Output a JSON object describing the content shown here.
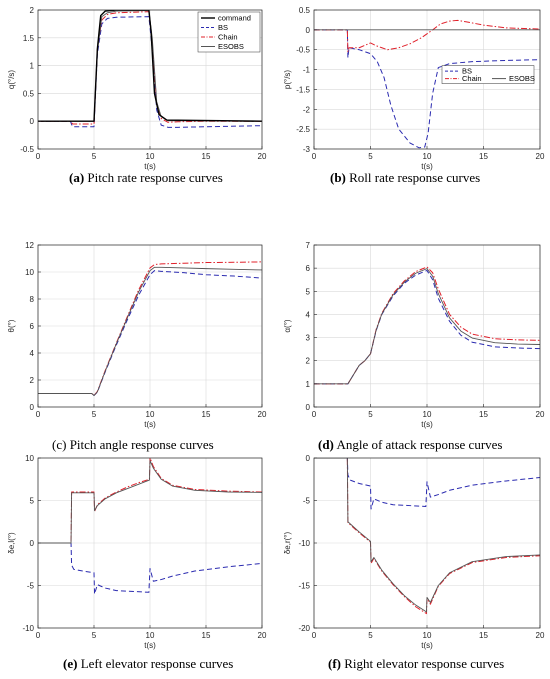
{
  "colors": {
    "command": "#000000",
    "BS": "#2b2bb0",
    "Chain": "#e0202a",
    "ESOBS": "#555555",
    "grid": "#d9d9d9",
    "axis": "#262626"
  },
  "captions": [
    {
      "letter": "(a)",
      "text": "Pitch rate response curves"
    },
    {
      "letter": "(b)",
      "text": "Roll rate response curves"
    },
    {
      "letter": "(c)",
      "text": "Pitch angle response curves"
    },
    {
      "letter": "(d)",
      "text": "Angle of attack response curves"
    },
    {
      "letter": "(e)",
      "text": "Left elevator response curves"
    },
    {
      "letter": "(f)",
      "text": "Right elevator response curves"
    }
  ],
  "chart_data": [
    {
      "type": "line",
      "xlabel": "t(s)",
      "ylabel": "q(°/s)",
      "xlim": [
        0,
        20
      ],
      "ylim": [
        -0.5,
        2
      ],
      "xticks": [
        0,
        5,
        10,
        15,
        20
      ],
      "yticks": [
        -0.5,
        0,
        0.5,
        1,
        1.5,
        2
      ],
      "xtick_labels": [
        "0",
        "5",
        "10",
        "15",
        "20"
      ],
      "ytick_labels": [
        "-0.5",
        "0",
        "0.5",
        "1",
        "1.5",
        "2"
      ],
      "grid": true,
      "legend": "top-right",
      "legend_entries": [
        "command",
        "BS",
        "Chain",
        "ESOBS"
      ],
      "series": [
        {
          "name": "command",
          "style": "solid",
          "x": [
            0,
            5,
            5.3,
            5.6,
            6,
            7,
            9.9,
            10.1,
            10.4,
            10.8,
            11.5,
            20
          ],
          "y": [
            0,
            0,
            1.3,
            1.9,
            1.98,
            2,
            2,
            1.6,
            0.5,
            0.12,
            0.02,
            0
          ]
        },
        {
          "name": "BS",
          "style": "dashed",
          "x": [
            0,
            2.9,
            3,
            3.1,
            5,
            5.3,
            5.7,
            6.2,
            7,
            9.9,
            10.2,
            10.6,
            11,
            11.6,
            12.5,
            15,
            20
          ],
          "y": [
            0,
            0,
            -0.06,
            -0.1,
            -0.1,
            1.2,
            1.75,
            1.85,
            1.87,
            1.88,
            1.3,
            0.2,
            -0.07,
            -0.11,
            -0.11,
            -0.1,
            -0.08
          ]
        },
        {
          "name": "Chain",
          "style": "dashdot",
          "x": [
            0,
            2.9,
            3,
            3.1,
            5,
            5.3,
            5.7,
            6.2,
            7,
            9.9,
            10.2,
            10.6,
            11,
            11.6,
            12.5,
            15,
            20
          ],
          "y": [
            0,
            0,
            -0.03,
            -0.05,
            -0.05,
            1.3,
            1.82,
            1.92,
            1.95,
            1.97,
            1.4,
            0.3,
            0.05,
            -0.02,
            -0.01,
            0,
            0
          ]
        },
        {
          "name": "ESOBS",
          "style": "solid",
          "x": [
            0,
            5,
            5.3,
            5.7,
            6.2,
            7,
            9.9,
            10.2,
            10.6,
            11,
            11.6,
            20
          ],
          "y": [
            0,
            0,
            1.25,
            1.88,
            1.95,
            1.98,
            1.99,
            1.5,
            0.35,
            0.08,
            0.01,
            0
          ]
        }
      ]
    },
    {
      "type": "line",
      "xlabel": "t(s)",
      "ylabel": "p(°/s)",
      "xlim": [
        0,
        20
      ],
      "ylim": [
        -3,
        0.5
      ],
      "xticks": [
        0,
        5,
        10,
        15,
        20
      ],
      "yticks": [
        -3,
        -2.5,
        -2,
        -1.5,
        -1,
        -0.5,
        0,
        0.5
      ],
      "xtick_labels": [
        "0",
        "5",
        "10",
        "15",
        "20"
      ],
      "ytick_labels": [
        "-3",
        "-2.5",
        "-2",
        "-1.5",
        "-1",
        "-0.5",
        "0",
        "0.5"
      ],
      "grid": true,
      "legend": "center-right",
      "legend_entries": [
        "BS",
        "Chain",
        "ESOBS"
      ],
      "series": [
        {
          "name": "BS",
          "style": "dashed",
          "x": [
            0,
            2.95,
            3,
            3.1,
            4,
            5,
            5.6,
            6.2,
            6.8,
            7.5,
            8.5,
            9.3,
            9.8,
            10.1,
            10.5,
            11,
            12,
            14,
            17,
            20
          ],
          "y": [
            0,
            0,
            -0.7,
            -0.45,
            -0.5,
            -0.6,
            -0.8,
            -1.2,
            -1.9,
            -2.5,
            -2.85,
            -2.97,
            -2.95,
            -2.6,
            -1.6,
            -0.95,
            -0.85,
            -0.8,
            -0.77,
            -0.75
          ]
        },
        {
          "name": "Chain",
          "style": "dashdot",
          "x": [
            0,
            2.95,
            3,
            3.1,
            4,
            5,
            5.5,
            6.5,
            7.5,
            8.5,
            9.5,
            10.5,
            11.2,
            12,
            12.7,
            13.5,
            15,
            17,
            20
          ],
          "y": [
            0,
            0,
            -0.55,
            -0.45,
            -0.45,
            -0.33,
            -0.4,
            -0.5,
            -0.45,
            -0.35,
            -0.2,
            0,
            0.15,
            0.22,
            0.24,
            0.2,
            0.12,
            0.05,
            0.02
          ]
        },
        {
          "name": "ESOBS",
          "style": "solid",
          "x": [
            0,
            20
          ],
          "y": [
            0,
            0
          ]
        }
      ]
    },
    {
      "type": "line",
      "xlabel": "t(s)",
      "ylabel": "θ(°)",
      "xlim": [
        0,
        20
      ],
      "ylim": [
        0,
        12
      ],
      "xticks": [
        0,
        5,
        10,
        15,
        20
      ],
      "yticks": [
        0,
        2,
        4,
        6,
        8,
        10,
        12
      ],
      "xtick_labels": [
        "0",
        "5",
        "10",
        "15",
        "20"
      ],
      "ytick_labels": [
        "0",
        "2",
        "4",
        "6",
        "8",
        "10",
        "12"
      ],
      "grid": true,
      "series": [
        {
          "name": "BS",
          "style": "dashed",
          "x": [
            0,
            4.8,
            5,
            5.3,
            6,
            7,
            8,
            9,
            10,
            10.4,
            11,
            13,
            15,
            17.5,
            20
          ],
          "y": [
            1,
            1,
            0.85,
            1.1,
            2.6,
            4.6,
            6.5,
            8.3,
            9.8,
            10.1,
            10.05,
            9.95,
            9.8,
            9.7,
            9.55
          ]
        },
        {
          "name": "Chain",
          "style": "dashdot",
          "x": [
            0,
            4.8,
            5,
            5.3,
            6,
            7,
            8,
            9,
            10,
            10.4,
            11,
            13,
            15,
            17.5,
            20
          ],
          "y": [
            1,
            1,
            0.85,
            1.15,
            2.7,
            4.75,
            6.75,
            8.7,
            10.3,
            10.55,
            10.6,
            10.65,
            10.7,
            10.72,
            10.75
          ]
        },
        {
          "name": "ESOBS",
          "style": "solid",
          "x": [
            0,
            4.8,
            5,
            5.3,
            6,
            7,
            8,
            9,
            10,
            10.4,
            11,
            13,
            15,
            17.5,
            20
          ],
          "y": [
            1,
            1,
            0.85,
            1.12,
            2.65,
            4.7,
            6.65,
            8.55,
            10.1,
            10.35,
            10.35,
            10.3,
            10.25,
            10.2,
            10.15
          ]
        }
      ]
    },
    {
      "type": "line",
      "xlabel": "t(s)",
      "ylabel": "α(°)",
      "xlim": [
        0,
        20
      ],
      "ylim": [
        0,
        7
      ],
      "xticks": [
        0,
        5,
        10,
        15,
        20
      ],
      "yticks": [
        0,
        1,
        2,
        3,
        4,
        5,
        6,
        7
      ],
      "xtick_labels": [
        "0",
        "5",
        "10",
        "15",
        "20"
      ],
      "ytick_labels": [
        "0",
        "1",
        "2",
        "3",
        "4",
        "5",
        "6",
        "7"
      ],
      "grid": true,
      "series": [
        {
          "name": "BS",
          "style": "dashed",
          "x": [
            0,
            3,
            3.5,
            4,
            4.5,
            5,
            5.5,
            6,
            7,
            8,
            9,
            10,
            10.5,
            11,
            12,
            13,
            14,
            16,
            18,
            20
          ],
          "y": [
            1,
            1,
            1.4,
            1.8,
            2,
            2.3,
            3.3,
            4,
            4.8,
            5.35,
            5.7,
            5.9,
            5.5,
            4.7,
            3.7,
            3.1,
            2.8,
            2.6,
            2.55,
            2.52
          ]
        },
        {
          "name": "Chain",
          "style": "dashdot",
          "x": [
            0,
            3,
            3.5,
            4,
            4.5,
            5,
            5.5,
            6,
            7,
            8,
            9,
            10,
            10.5,
            11,
            12,
            13,
            14,
            16,
            18,
            20
          ],
          "y": [
            1,
            1,
            1.4,
            1.8,
            2,
            2.3,
            3.35,
            4.05,
            4.9,
            5.45,
            5.85,
            6.05,
            5.8,
            5.1,
            4,
            3.45,
            3.15,
            2.95,
            2.9,
            2.88
          ]
        },
        {
          "name": "ESOBS",
          "style": "solid",
          "x": [
            0,
            3,
            3.5,
            4,
            4.5,
            5,
            5.5,
            6,
            7,
            8,
            9,
            10,
            10.5,
            11,
            12,
            13,
            14,
            16,
            18,
            20
          ],
          "y": [
            1,
            1,
            1.4,
            1.8,
            2,
            2.3,
            3.32,
            4.02,
            4.85,
            5.4,
            5.78,
            5.98,
            5.65,
            4.9,
            3.85,
            3.28,
            2.98,
            2.78,
            2.72,
            2.7
          ]
        }
      ]
    },
    {
      "type": "line",
      "xlabel": "t(s)",
      "ylabel": "δe,l(°)",
      "xlim": [
        0,
        20
      ],
      "ylim": [
        -10,
        10
      ],
      "xticks": [
        0,
        5,
        10,
        15,
        20
      ],
      "yticks": [
        -10,
        -5,
        0,
        5,
        10
      ],
      "xtick_labels": [
        "0",
        "5",
        "10",
        "15",
        "20"
      ],
      "ytick_labels": [
        "-10",
        "-5",
        "0",
        "5",
        "10"
      ],
      "grid": true,
      "series": [
        {
          "name": "BS",
          "style": "dashed",
          "x": [
            0,
            2.95,
            3,
            3.2,
            4,
            5,
            5.05,
            5.3,
            6,
            7,
            9.9,
            10,
            10.3,
            11,
            12,
            14,
            17,
            20
          ],
          "y": [
            0,
            0,
            -2.6,
            -3.1,
            -3.3,
            -3.5,
            -6,
            -4.9,
            -5.3,
            -5.6,
            -5.8,
            -3,
            -4.5,
            -4.3,
            -3.9,
            -3.3,
            -2.8,
            -2.4
          ]
        },
        {
          "name": "Chain",
          "style": "dashdot",
          "x": [
            0,
            2.95,
            3,
            4,
            5,
            5.05,
            5.3,
            6,
            7,
            8,
            9,
            9.95,
            10,
            10.3,
            11,
            12,
            14,
            17,
            20
          ],
          "y": [
            0,
            0,
            6,
            6,
            6,
            3.7,
            4.5,
            5.3,
            6,
            6.6,
            7.1,
            7.5,
            10,
            9,
            7.6,
            6.8,
            6.3,
            6.1,
            6
          ]
        },
        {
          "name": "ESOBS",
          "style": "solid",
          "x": [
            0,
            2.95,
            3,
            4,
            5,
            5.05,
            5.3,
            6,
            7,
            9.95,
            10,
            10.3,
            11,
            12,
            14,
            17,
            20
          ],
          "y": [
            0,
            0,
            5.9,
            5.9,
            5.9,
            3.8,
            4.4,
            5.2,
            5.9,
            7.4,
            9.7,
            8.8,
            7.5,
            6.7,
            6.2,
            6,
            5.95
          ]
        }
      ]
    },
    {
      "type": "line",
      "xlabel": "t(s)",
      "ylabel": "δe,r(°)",
      "xlim": [
        0,
        20
      ],
      "ylim": [
        -20,
        0
      ],
      "xticks": [
        0,
        5,
        10,
        15,
        20
      ],
      "yticks": [
        -20,
        -15,
        -10,
        -5,
        0
      ],
      "xtick_labels": [
        "0",
        "5",
        "10",
        "15",
        "20"
      ],
      "ytick_labels": [
        "-20",
        "-15",
        "-10",
        "-5",
        "0"
      ],
      "grid": true,
      "series": [
        {
          "name": "BS",
          "style": "dashed",
          "x": [
            0,
            2.95,
            3,
            3.2,
            4,
            5,
            5.05,
            5.3,
            6,
            7,
            9.9,
            10,
            10.3,
            11,
            12,
            14,
            17,
            20
          ],
          "y": [
            0,
            0,
            -2,
            -2.6,
            -3,
            -3.3,
            -6,
            -4.8,
            -5.2,
            -5.5,
            -5.7,
            -2.8,
            -4.6,
            -4.3,
            -3.8,
            -3.2,
            -2.7,
            -2.3
          ]
        },
        {
          "name": "Chain",
          "style": "dashdot",
          "x": [
            0,
            2.95,
            3,
            4,
            5,
            5.05,
            5.3,
            6,
            7,
            8,
            9,
            9.95,
            10,
            10.3,
            11,
            12,
            14,
            17,
            20
          ],
          "y": [
            0,
            0,
            -7.6,
            -8.8,
            -9.9,
            -12.4,
            -11.8,
            -13.3,
            -14.9,
            -16.3,
            -17.5,
            -18.3,
            -16.5,
            -17.2,
            -15.1,
            -13.6,
            -12.3,
            -11.7,
            -11.5
          ]
        },
        {
          "name": "ESOBS",
          "style": "solid",
          "x": [
            0,
            2.95,
            3,
            4,
            5,
            5.05,
            5.3,
            6,
            7,
            8,
            9,
            9.95,
            10,
            10.3,
            11,
            12,
            14,
            17,
            20
          ],
          "y": [
            0,
            0,
            -7.5,
            -8.7,
            -9.8,
            -12.2,
            -11.7,
            -13.2,
            -14.8,
            -16.2,
            -17.3,
            -18.1,
            -16.4,
            -17,
            -15,
            -13.5,
            -12.2,
            -11.6,
            -11.4
          ]
        }
      ]
    }
  ]
}
